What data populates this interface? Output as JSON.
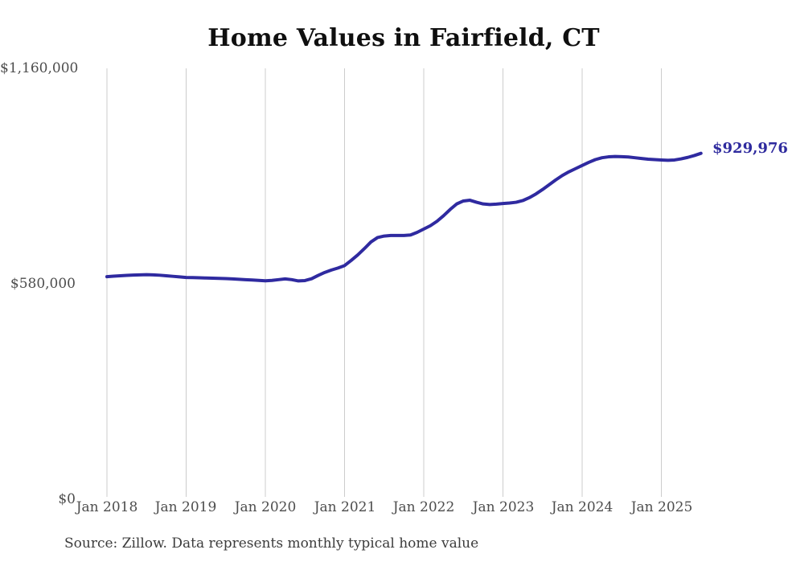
{
  "title": "Home Values in Fairfield, CT",
  "source_note": "Source: Zillow. Data represents monthly typical home value",
  "end_label": "$929,976",
  "colors": {
    "line": "#2f2aa0",
    "end_label": "#2e2a9e",
    "gridline": "#cccccc",
    "axis_text": "#4d4d4d",
    "title_text": "#0f0f0f"
  },
  "chart_data": {
    "type": "line",
    "title": "Home Values in Fairfield, CT",
    "xlabel": "",
    "ylabel": "",
    "ylim": [
      0,
      1160000
    ],
    "y_ticks": [
      0,
      580000,
      1160000
    ],
    "y_tick_labels": [
      "$0",
      "$580,000",
      "$1,160,000"
    ],
    "x_tick_labels": [
      "Jan 2018",
      "Jan 2019",
      "Jan 2020",
      "Jan 2021",
      "Jan 2022",
      "Jan 2023",
      "Jan 2024",
      "Jan 2025"
    ],
    "grid": "vertical-only",
    "legend": "none",
    "start_month": "2018-01",
    "end_month": "2025-07",
    "frequency": "monthly",
    "end_value": 929976,
    "series": [
      {
        "name": "Typical home value",
        "values": [
          596000,
          597500,
          598500,
          599500,
          600500,
          601000,
          601500,
          601000,
          600000,
          598500,
          597000,
          595500,
          594000,
          593500,
          593000,
          592500,
          592000,
          591500,
          591000,
          590000,
          589000,
          588000,
          587000,
          586000,
          585000,
          586000,
          588000,
          590000,
          588000,
          584500,
          585500,
          590500,
          599500,
          607500,
          614000,
          619500,
          626000,
          640000,
          655000,
          672000,
          690000,
          702000,
          706000,
          707500,
          707500,
          707500,
          709000,
          716000,
          725000,
          734000,
          746000,
          761000,
          778000,
          793000,
          801000,
          803000,
          797500,
          793000,
          791500,
          792500,
          794000,
          795500,
          797500,
          802000,
          810000,
          820000,
          832000,
          845000,
          858000,
          870000,
          880000,
          888500,
          897000,
          905500,
          913000,
          918000,
          920500,
          921500,
          921000,
          920000,
          918000,
          916000,
          914000,
          913000,
          912000,
          911000,
          912000,
          915000,
          919000,
          924000,
          929976
        ]
      }
    ]
  }
}
